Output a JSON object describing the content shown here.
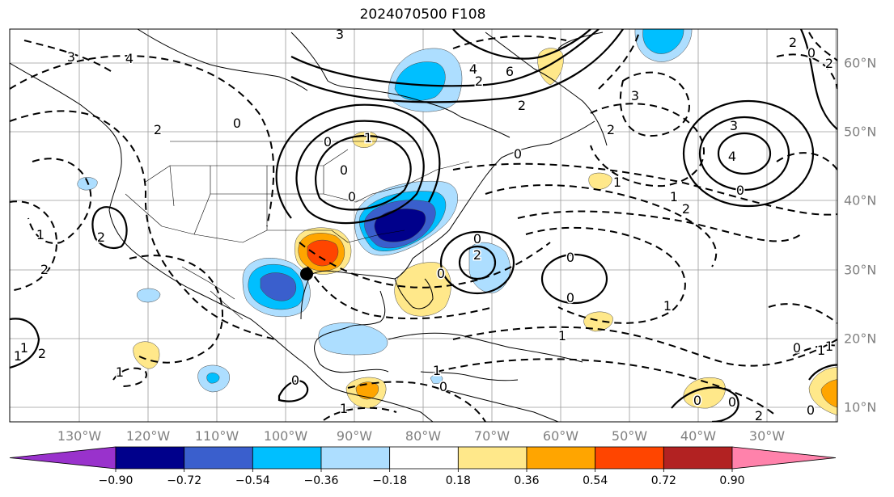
{
  "title": "2024070500 F108",
  "lon_labels": [
    "130°W",
    "120°W",
    "110°W",
    "100°W",
    "90°W",
    "80°W",
    "70°W",
    "60°W",
    "50°W",
    "40°W",
    "30°W"
  ],
  "lat_labels": [
    "60°N",
    "50°N",
    "40°N",
    "30°N",
    "20°N",
    "10°N"
  ],
  "colorbar": {
    "ticks": [
      "−0.90",
      "−0.72",
      "−0.54",
      "−0.36",
      "−0.18",
      "0.18",
      "0.36",
      "0.54",
      "0.72",
      "0.90"
    ],
    "colors": {
      "under": "#9932CC",
      "bins": [
        "#00008B",
        "#3A5FCD",
        "#00BFFF",
        "#ADDEFF",
        "#FFFFFF",
        "#FFE88A",
        "#FFA500",
        "#FF4500",
        "#B22222"
      ],
      "over": "#FF82AB"
    }
  },
  "contour_labels": [
    "3",
    "4",
    "3",
    "4",
    "6",
    "2",
    "2",
    "0",
    "2",
    "2",
    "3",
    "2",
    "0",
    "2",
    "0",
    "1",
    "0",
    "3",
    "4",
    "0",
    "1",
    "1",
    "2",
    "2",
    "0",
    "0",
    "1",
    "0",
    "0",
    "2",
    "2",
    "1",
    "0",
    "0",
    "1",
    "1",
    "1",
    "0",
    "0",
    "1",
    "1",
    "0",
    "0",
    "2",
    "0",
    "0",
    "1",
    "1",
    "2",
    "1"
  ],
  "markers": {
    "storm_center": "black-dot"
  }
}
